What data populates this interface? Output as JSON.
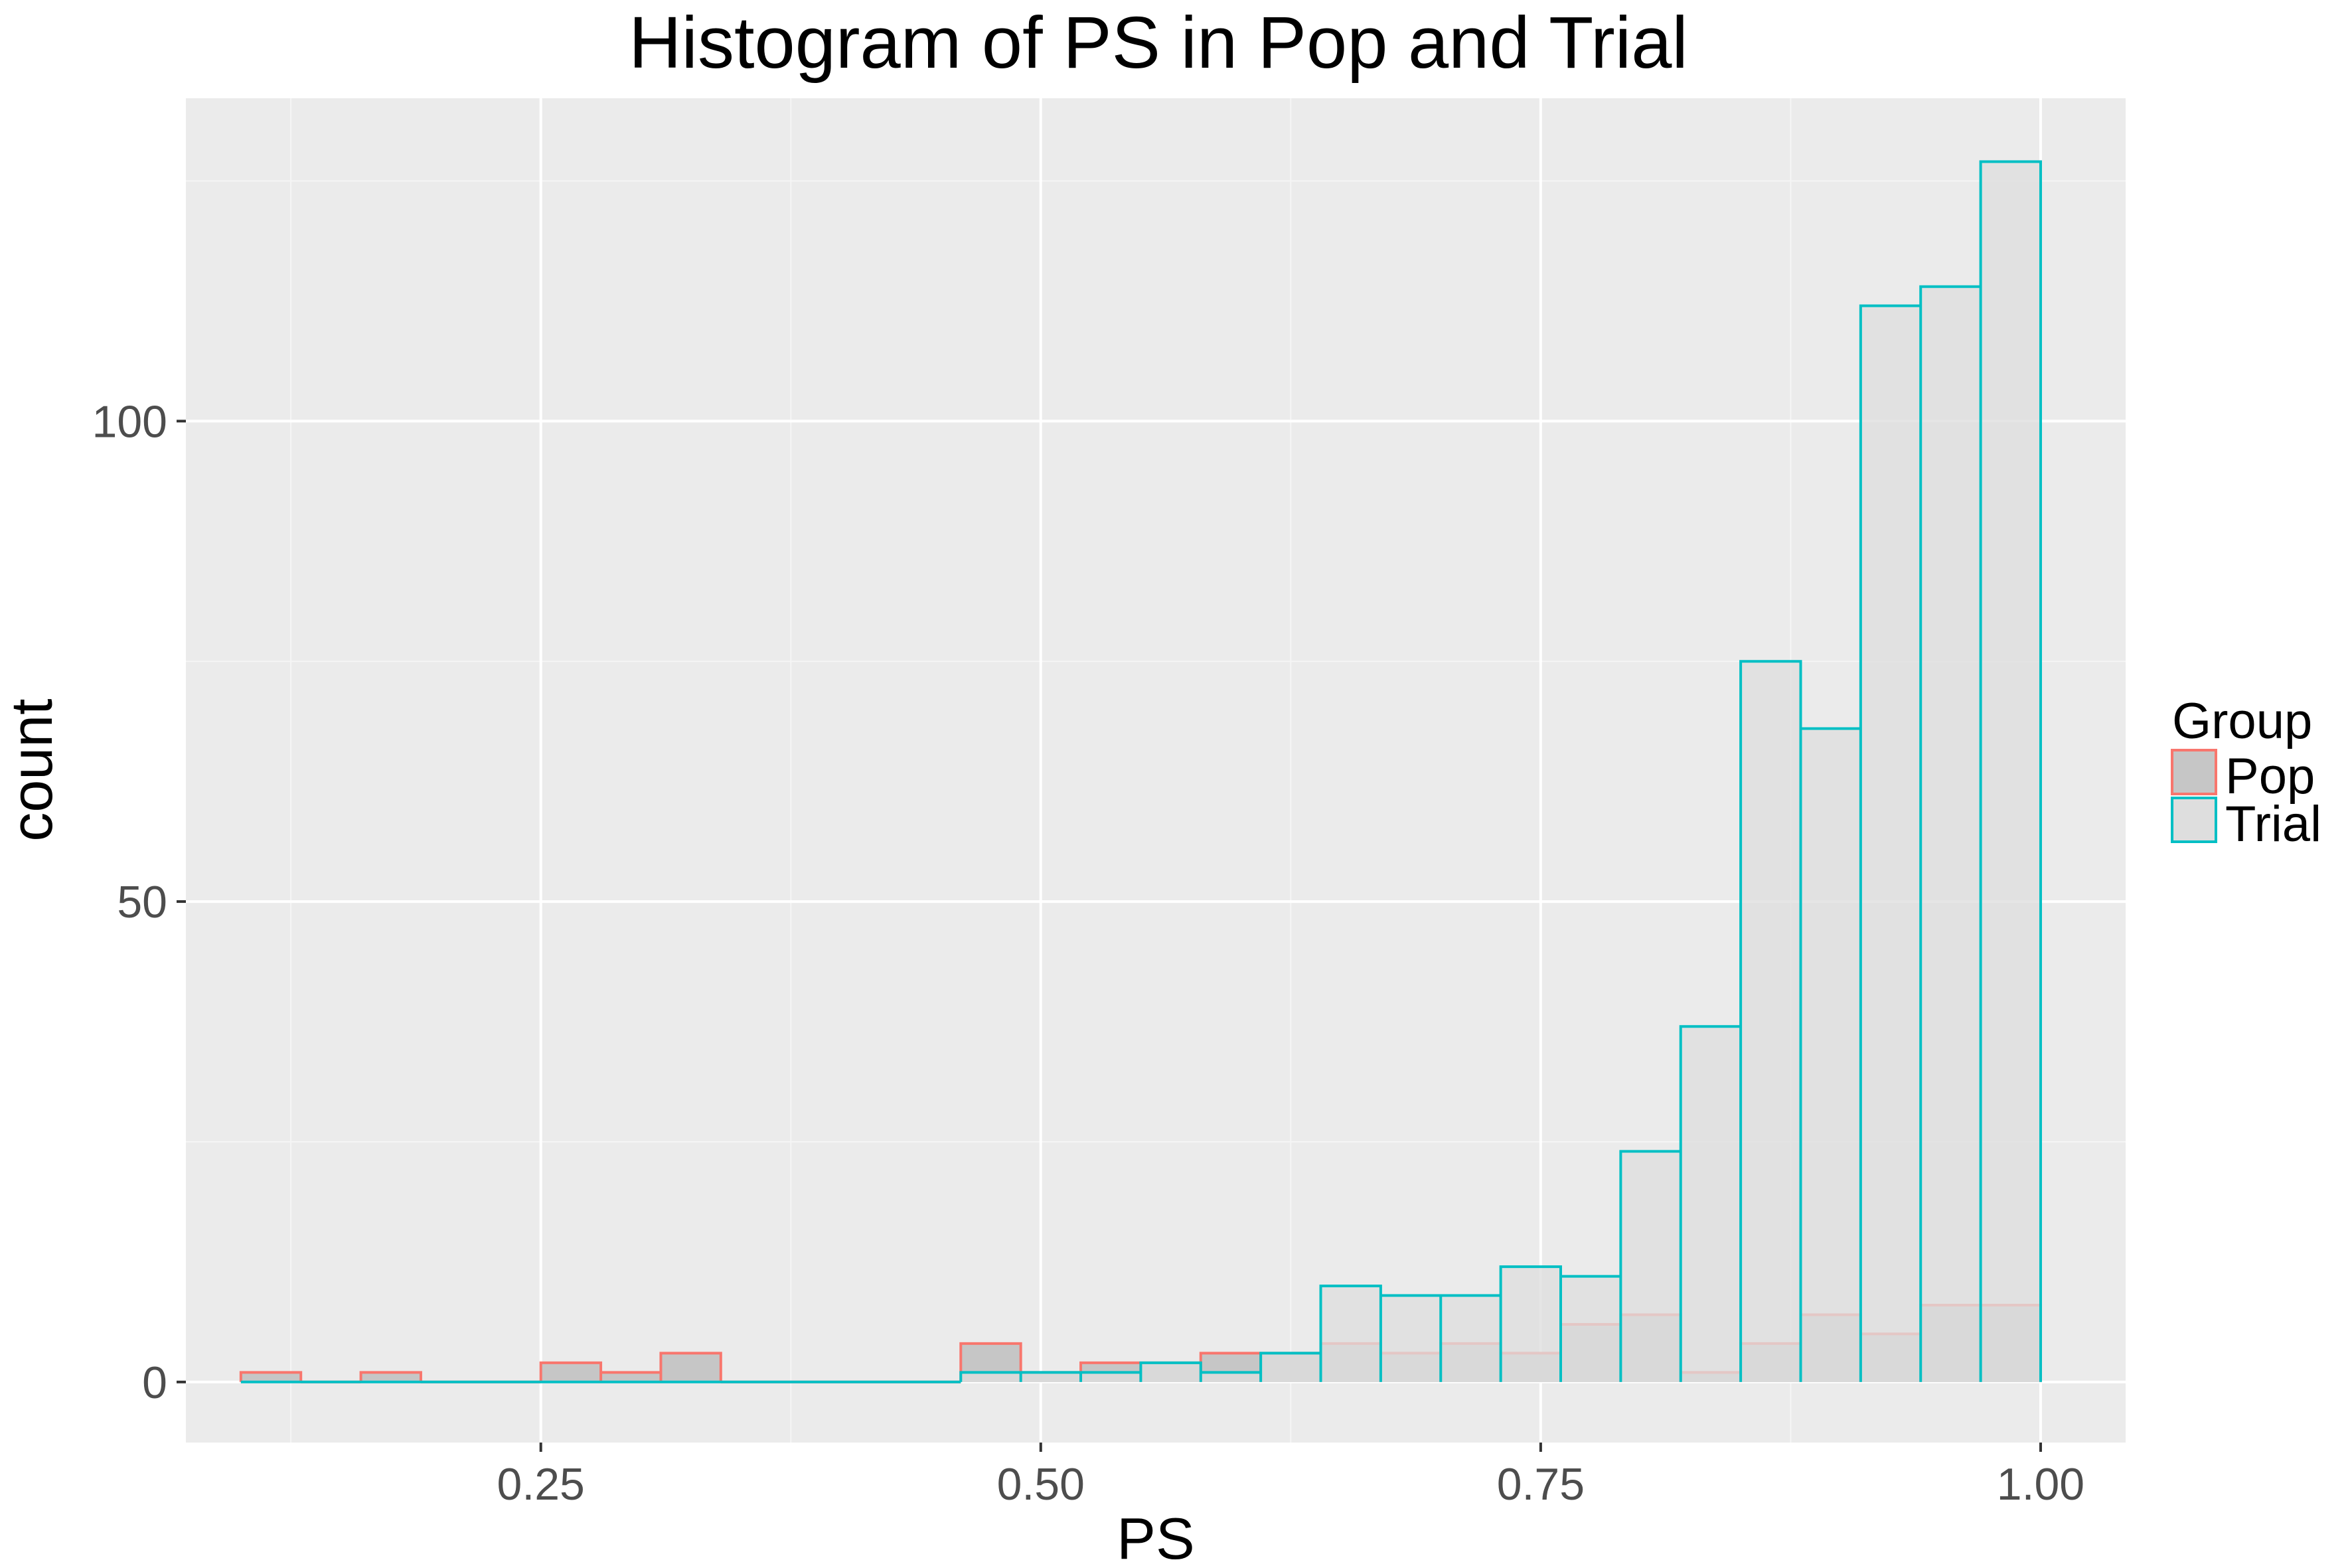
{
  "chart_data": {
    "type": "bar",
    "title": "Histogram of PS in Pop and Trial",
    "xlabel": "PS",
    "ylabel": "count",
    "xlim": [
      0.0725,
      1.0425
    ],
    "ylim": [
      -6.3,
      133.6
    ],
    "x_ticks": [
      {
        "value": 0.25,
        "label": "0.25"
      },
      {
        "value": 0.5,
        "label": "0.50"
      },
      {
        "value": 0.75,
        "label": "0.75"
      },
      {
        "value": 1.0,
        "label": "1.00"
      }
    ],
    "y_ticks": [
      {
        "value": 0,
        "label": "0"
      },
      {
        "value": 50,
        "label": "50"
      },
      {
        "value": 100,
        "label": "100"
      }
    ],
    "bin_start": 0.1,
    "bin_width": 0.03,
    "grid": true,
    "legend": {
      "title": "Group",
      "position": "right",
      "entries": [
        "Pop",
        "Trial"
      ]
    },
    "series": [
      {
        "name": "Pop",
        "color": "#F8766D",
        "values": [
          1,
          0,
          1,
          0,
          0,
          2,
          1,
          3,
          0,
          0,
          0,
          0,
          4,
          1,
          2,
          2,
          3,
          3,
          4,
          3,
          4,
          3,
          6,
          7,
          1,
          4,
          7,
          5,
          8,
          8
        ]
      },
      {
        "name": "Trial",
        "color": "#00BFC4",
        "values": [
          0,
          0,
          0,
          0,
          0,
          0,
          0,
          0,
          0,
          0,
          0,
          0,
          1,
          1,
          1,
          2,
          1,
          3,
          10,
          9,
          9,
          12,
          11,
          24,
          37,
          75,
          68,
          112,
          114,
          127
        ]
      }
    ]
  }
}
